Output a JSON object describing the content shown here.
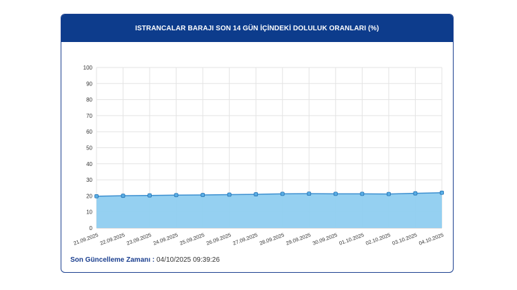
{
  "header": {
    "title": "ISTRANCALAR BARAJI SON 14 GÜN İÇİNDEKİ DOLULUK ORANLARI (%)"
  },
  "footer": {
    "label": "Son Güncelleme Zamanı :",
    "value": "04/10/2025 09:39:26"
  },
  "colors": {
    "header_bg": "#0d3c8c",
    "area_fill": "#8fcdf0",
    "line": "#3b8fd0",
    "point_fill": "#5aaee6"
  },
  "chart_data": {
    "type": "area",
    "title": "ISTRANCALAR BARAJI SON 14 GÜN İÇİNDEKİ DOLULUK ORANLARI (%)",
    "xlabel": "",
    "ylabel": "",
    "ylim": [
      0,
      100
    ],
    "yticks": [
      0,
      10,
      20,
      30,
      40,
      50,
      60,
      70,
      80,
      90,
      100
    ],
    "grid": true,
    "categories": [
      "21.09.2025",
      "22.09.2025",
      "23.09.2025",
      "24.09.2025",
      "25.09.2025",
      "26.09.2025",
      "27.09.2025",
      "28.09.2025",
      "29.09.2025",
      "30.09.2025",
      "01.10.2025",
      "02.10.2025",
      "03.10.2025",
      "04.10.2025"
    ],
    "values": [
      19.8,
      20.1,
      20.3,
      20.5,
      20.6,
      20.8,
      21.0,
      21.3,
      21.4,
      21.3,
      21.3,
      21.2,
      21.6,
      22.0
    ]
  }
}
